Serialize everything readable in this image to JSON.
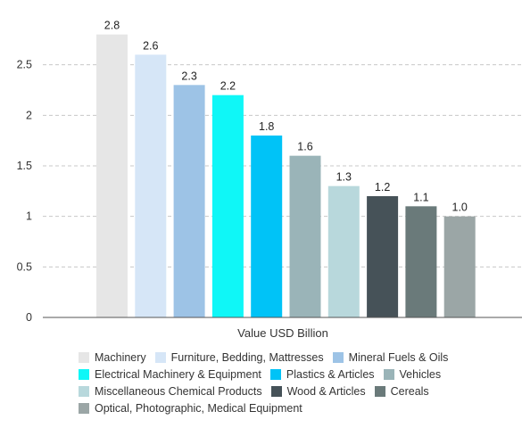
{
  "chart_data": {
    "type": "bar",
    "xlabel": "Value USD Billion",
    "ylim": [
      0,
      3
    ],
    "y_ticks": [
      "0",
      "0.5",
      "1",
      "1.5",
      "2",
      "2.5"
    ],
    "grid": true,
    "legend_position": "bottom",
    "series": [
      {
        "name": "Machinery",
        "value": 2.8,
        "label": "2.8",
        "color": "#e6e6e6"
      },
      {
        "name": "Furniture, Bedding, Mattresses",
        "value": 2.6,
        "label": "2.6",
        "color": "#d6e6f7"
      },
      {
        "name": "Mineral Fuels & Oils",
        "value": 2.3,
        "label": "2.3",
        "color": "#9dc3e6"
      },
      {
        "name": "Electrical Machinery & Equipment",
        "value": 2.2,
        "label": "2.2",
        "color": "#0ff7f7"
      },
      {
        "name": "Plastics & Articles",
        "value": 1.8,
        "label": "1.8",
        "color": "#00c3f7"
      },
      {
        "name": "Vehicles",
        "value": 1.6,
        "label": "1.6",
        "color": "#9ab4b8"
      },
      {
        "name": "Miscellaneous Chemical Products",
        "value": 1.3,
        "label": "1.3",
        "color": "#b8d8dc"
      },
      {
        "name": "Wood & Articles",
        "value": 1.2,
        "label": "1.2",
        "color": "#465258"
      },
      {
        "name": "Cereals",
        "value": 1.1,
        "label": "1.1",
        "color": "#6a7a7a"
      },
      {
        "name": "Optical, Photographic, Medical Equipment",
        "value": 1.0,
        "label": "1.0",
        "color": "#9ba6a6"
      }
    ]
  }
}
